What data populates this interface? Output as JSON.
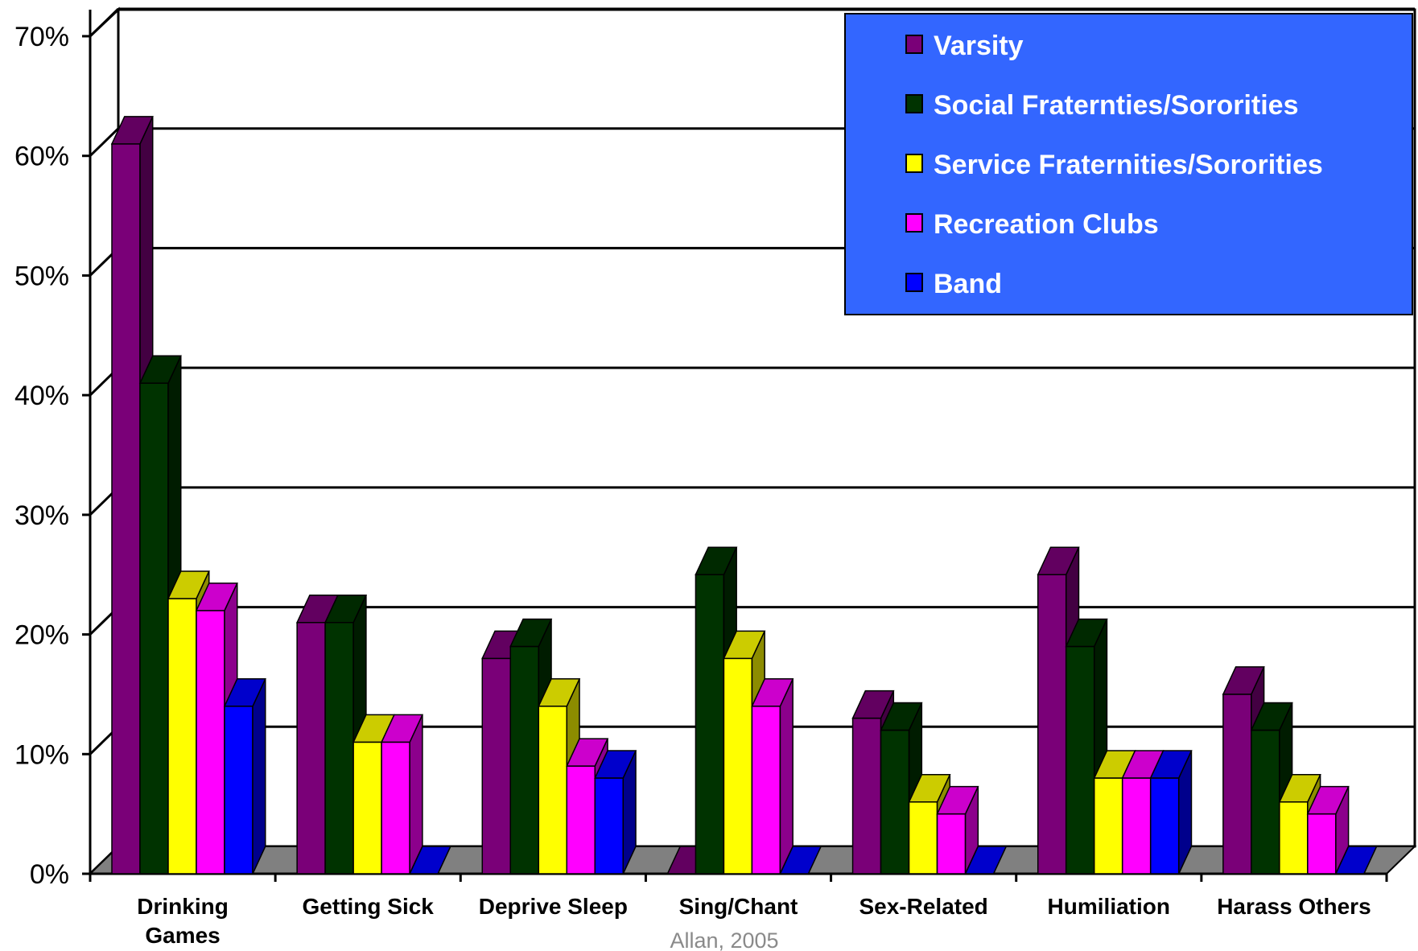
{
  "chart_data": {
    "type": "bar",
    "categories": [
      [
        "Drinking",
        "Games"
      ],
      [
        "Getting Sick"
      ],
      [
        "Deprive Sleep"
      ],
      [
        "Sing/Chant"
      ],
      [
        "Sex-Related"
      ],
      [
        "Humiliation"
      ],
      [
        "Harass Others"
      ]
    ],
    "series": [
      {
        "name": "Varsity",
        "color": "#7a0078",
        "values": [
          61,
          21,
          18,
          0,
          13,
          25,
          15
        ]
      },
      {
        "name": "Social Fraternties/Sororities",
        "color": "#003300",
        "values": [
          41,
          21,
          19,
          25,
          12,
          19,
          12
        ]
      },
      {
        "name": "Service Fraternities/Sororities",
        "color": "#ffff00",
        "values": [
          23,
          11,
          14,
          18,
          6,
          8,
          6
        ]
      },
      {
        "name": "Recreation Clubs",
        "color": "#ff00ff",
        "values": [
          22,
          11,
          9,
          14,
          5,
          8,
          5
        ]
      },
      {
        "name": "Band",
        "color": "#0000ff",
        "values": [
          14,
          0,
          8,
          0,
          0,
          8,
          0
        ]
      }
    ],
    "yticks": [
      "0%",
      "10%",
      "20%",
      "30%",
      "40%",
      "50%",
      "60%",
      "70%"
    ],
    "ylim": [
      0,
      70
    ],
    "grid": true,
    "legend": {
      "placement": "top-right",
      "background": "#3366ff"
    },
    "source": "Allan, 2005"
  }
}
